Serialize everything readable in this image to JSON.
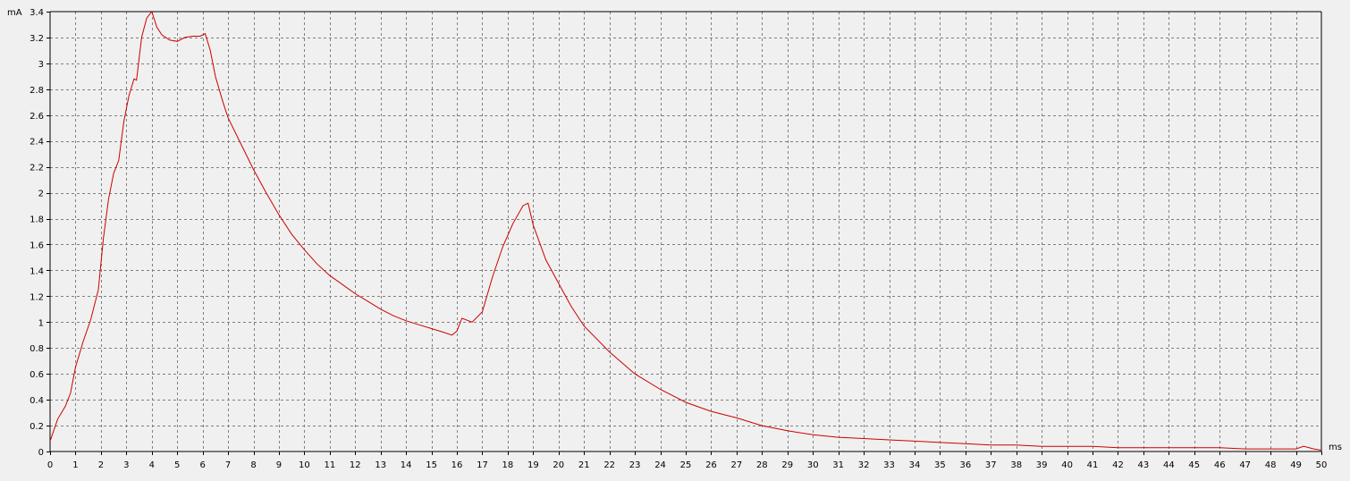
{
  "chart_data": {
    "type": "line",
    "ylabel": "mA",
    "xlabel": "ms",
    "xlim": [
      0,
      50
    ],
    "ylim": [
      0,
      3.4
    ],
    "grid": true,
    "x_ticks": [
      "0",
      "1",
      "2",
      "3",
      "4",
      "5",
      "6",
      "7",
      "8",
      "9",
      "10",
      "11",
      "12",
      "13",
      "14",
      "15",
      "16",
      "17",
      "18",
      "19",
      "20",
      "21",
      "22",
      "23",
      "24",
      "25",
      "26",
      "27",
      "28",
      "29",
      "30",
      "31",
      "32",
      "33",
      "34",
      "35",
      "36",
      "37",
      "38",
      "39",
      "40",
      "41",
      "42",
      "43",
      "44",
      "45",
      "46",
      "47",
      "48",
      "49",
      "50"
    ],
    "y_ticks": [
      "0",
      "0.2",
      "0.4",
      "0.6",
      "0.8",
      "1",
      "1.2",
      "1.4",
      "1.6",
      "1.8",
      "2",
      "2.2",
      "2.4",
      "2.6",
      "2.8",
      "3",
      "3.2",
      "3.4"
    ],
    "series": [
      {
        "color": "#cc0000",
        "x": [
          0,
          0.3,
          0.6,
          0.8,
          1.0,
          1.3,
          1.6,
          1.9,
          2.1,
          2.3,
          2.5,
          2.7,
          2.9,
          3.1,
          3.3,
          3.4,
          3.6,
          3.8,
          4.0,
          4.2,
          4.4,
          4.7,
          5.0,
          5.3,
          5.6,
          5.9,
          6.1,
          6.3,
          6.5,
          6.8,
          7.0,
          7.5,
          8.0,
          8.5,
          9.0,
          9.5,
          10.0,
          10.5,
          11.0,
          11.5,
          12.0,
          12.5,
          13.0,
          13.5,
          14.0,
          14.5,
          15.0,
          15.5,
          15.8,
          16.0,
          16.2,
          16.6,
          17.0,
          17.4,
          17.8,
          18.2,
          18.6,
          18.8,
          19.0,
          19.5,
          20.0,
          20.5,
          21.0,
          22.0,
          23.0,
          24.0,
          25.0,
          26.0,
          27.0,
          28.0,
          29.0,
          30.0,
          31.0,
          32.0,
          33.0,
          34.0,
          35.0,
          36.0,
          37.0,
          38.0,
          39.0,
          40.0,
          41.0,
          42.0,
          43.0,
          44.0,
          45.0,
          46.0,
          47.0,
          48.0,
          49.0,
          49.3,
          49.7,
          50.0
        ],
        "y": [
          0.08,
          0.25,
          0.35,
          0.45,
          0.65,
          0.85,
          1.02,
          1.25,
          1.65,
          1.95,
          2.15,
          2.25,
          2.55,
          2.75,
          2.88,
          2.87,
          3.2,
          3.35,
          3.4,
          3.28,
          3.22,
          3.18,
          3.17,
          3.2,
          3.21,
          3.21,
          3.23,
          3.1,
          2.9,
          2.7,
          2.58,
          2.38,
          2.18,
          2.0,
          1.83,
          1.68,
          1.56,
          1.45,
          1.36,
          1.29,
          1.22,
          1.16,
          1.1,
          1.05,
          1.01,
          0.98,
          0.95,
          0.92,
          0.9,
          0.93,
          1.03,
          1.0,
          1.08,
          1.35,
          1.58,
          1.76,
          1.9,
          1.92,
          1.75,
          1.48,
          1.3,
          1.12,
          0.97,
          0.77,
          0.6,
          0.48,
          0.38,
          0.31,
          0.26,
          0.2,
          0.16,
          0.13,
          0.11,
          0.1,
          0.09,
          0.08,
          0.07,
          0.06,
          0.05,
          0.05,
          0.04,
          0.04,
          0.04,
          0.03,
          0.03,
          0.03,
          0.03,
          0.03,
          0.02,
          0.02,
          0.02,
          0.04,
          0.02,
          0.01
        ]
      }
    ]
  }
}
